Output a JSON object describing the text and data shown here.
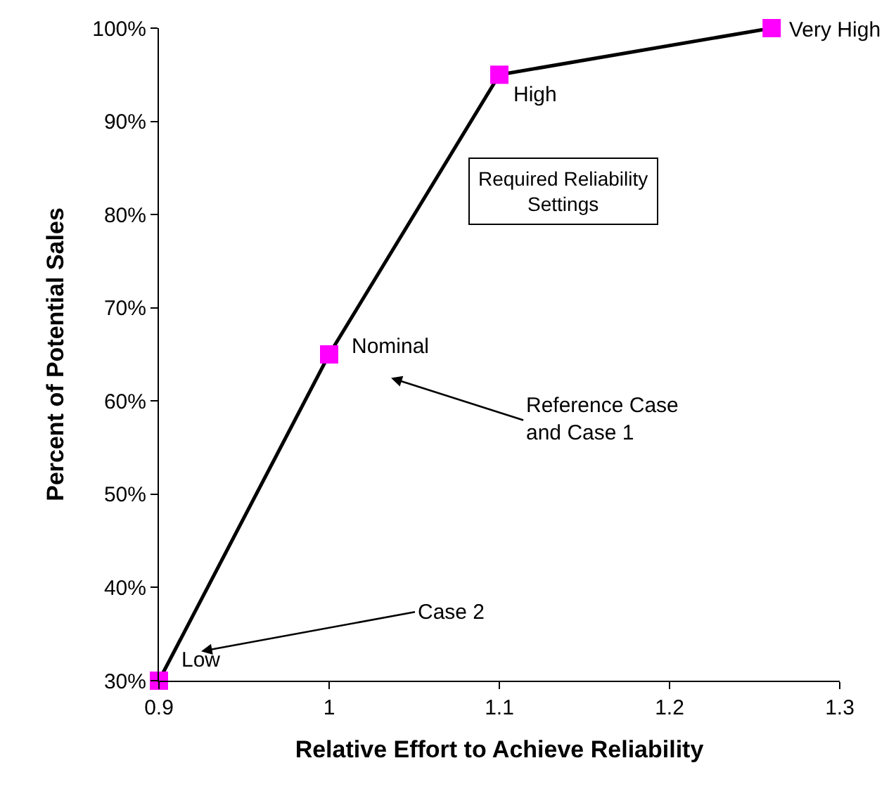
{
  "chart_data": {
    "type": "line",
    "xlabel": "Relative Effort to Achieve Reliability",
    "ylabel": "Percent of Potential Sales",
    "x": [
      0.9,
      1.0,
      1.1,
      1.26
    ],
    "series": [
      {
        "color": "#000000",
        "colors": [
          "#ff00ff",
          "#ff00ff",
          "#ff00ff",
          "#ff00ff"
        ],
        "values": [
          30,
          65,
          95,
          100
        ]
      }
    ],
    "marker": "square",
    "line_style": "solid",
    "grid": false,
    "legend": false,
    "xlim": [
      0.9,
      1.3
    ],
    "xticks": [
      0.9,
      1,
      1.1,
      1.2,
      1.3
    ],
    "ylim": [
      30,
      100
    ],
    "yticks": [
      {
        "value": 30,
        "label": "30%"
      },
      {
        "value": 40,
        "label": "40%"
      },
      {
        "value": 50,
        "label": "50%"
      },
      {
        "value": 60,
        "label": "60%"
      },
      {
        "value": 70,
        "label": "70%"
      },
      {
        "value": 80,
        "label": "80%"
      },
      {
        "value": 90,
        "label": "90%"
      },
      {
        "value": 100,
        "label": "100%"
      }
    ],
    "annotations": [
      {
        "text": "Low",
        "x": 0.9,
        "y": 30
      },
      {
        "text": "Nominal",
        "x": 1.0,
        "y": 65
      },
      {
        "text": "High",
        "x": 1.1,
        "y": 95
      },
      {
        "text": "Very High",
        "x": 1.26,
        "y": 100
      },
      "Reference Case\nand Case 1",
      "Case 2",
      "Required Reliability\nSettings"
    ]
  }
}
